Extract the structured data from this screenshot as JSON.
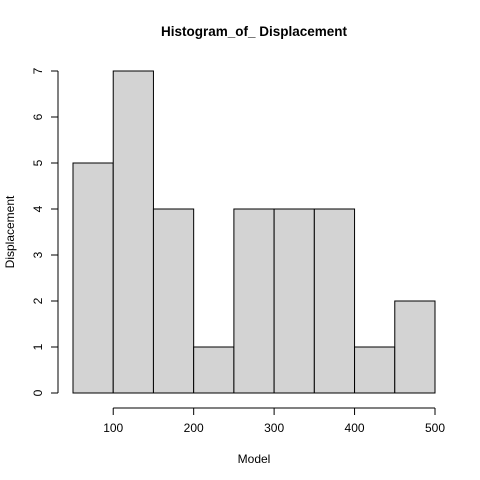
{
  "chart_data": {
    "type": "bar",
    "title": "Histogram_of_ Displacement",
    "xlabel": "Model",
    "ylabel": "Displacement",
    "bins": [
      {
        "start": 50,
        "end": 100,
        "count": 5
      },
      {
        "start": 100,
        "end": 150,
        "count": 7
      },
      {
        "start": 150,
        "end": 200,
        "count": 4
      },
      {
        "start": 200,
        "end": 250,
        "count": 1
      },
      {
        "start": 250,
        "end": 300,
        "count": 4
      },
      {
        "start": 300,
        "end": 350,
        "count": 4
      },
      {
        "start": 350,
        "end": 400,
        "count": 4
      },
      {
        "start": 400,
        "end": 450,
        "count": 1
      },
      {
        "start": 450,
        "end": 500,
        "count": 2
      }
    ],
    "xlim": [
      50,
      500
    ],
    "ylim": [
      0,
      7
    ],
    "x_ticks": [
      100,
      200,
      300,
      400,
      500
    ],
    "y_ticks": [
      0,
      1,
      2,
      3,
      4,
      5,
      6,
      7
    ],
    "grid": false,
    "colors": {
      "bar_fill": "#d3d3d3",
      "bar_stroke": "#000000"
    }
  }
}
